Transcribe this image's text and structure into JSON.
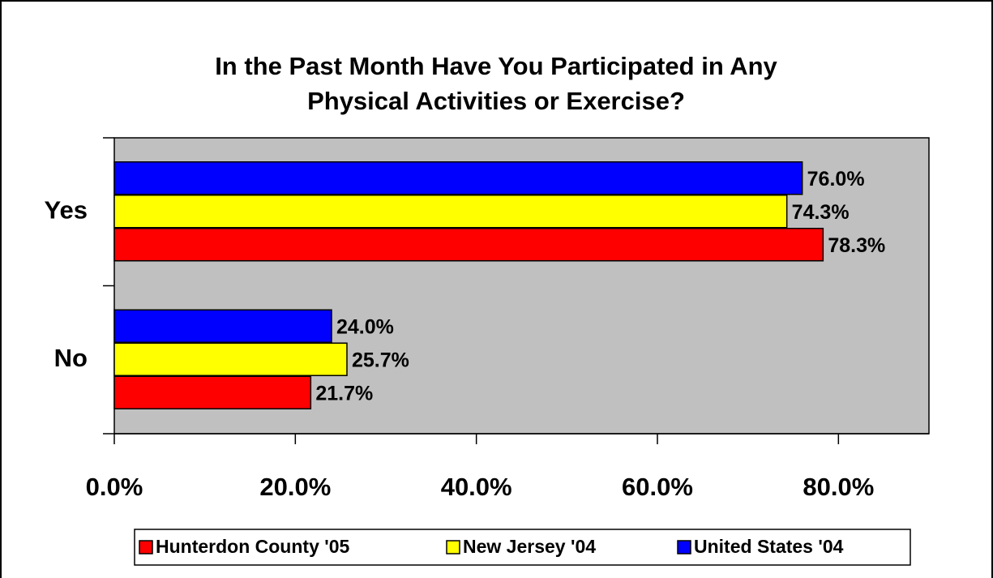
{
  "chart_data": {
    "type": "bar",
    "orientation": "horizontal",
    "title": [
      "In the Past Month Have You Participated in Any",
      "Physical Activities or Exercise?"
    ],
    "categories": [
      "Yes",
      "No"
    ],
    "series": [
      {
        "name": "Hunterdon County '05",
        "color": "#ff0000",
        "values": [
          78.3,
          21.7
        ],
        "value_labels": [
          "78.3%",
          "21.7%"
        ]
      },
      {
        "name": "New Jersey '04",
        "color": "#ffff00",
        "values": [
          74.3,
          25.7
        ],
        "value_labels": [
          "74.3%",
          "25.7%"
        ]
      },
      {
        "name": "United States '04",
        "color": "#0000ff",
        "values": [
          76.0,
          24.0
        ],
        "value_labels": [
          "76.0%",
          "24.0%"
        ]
      }
    ],
    "xlim": [
      0,
      90
    ],
    "xticks": [
      {
        "value": 0,
        "label": "0.0%"
      },
      {
        "value": 20,
        "label": "20.0%"
      },
      {
        "value": 40,
        "label": "40.0%"
      },
      {
        "value": 60,
        "label": "60.0%"
      },
      {
        "value": 80,
        "label": "80.0%"
      }
    ],
    "plot_background": "#c0c0c0",
    "legend": "bottom"
  }
}
